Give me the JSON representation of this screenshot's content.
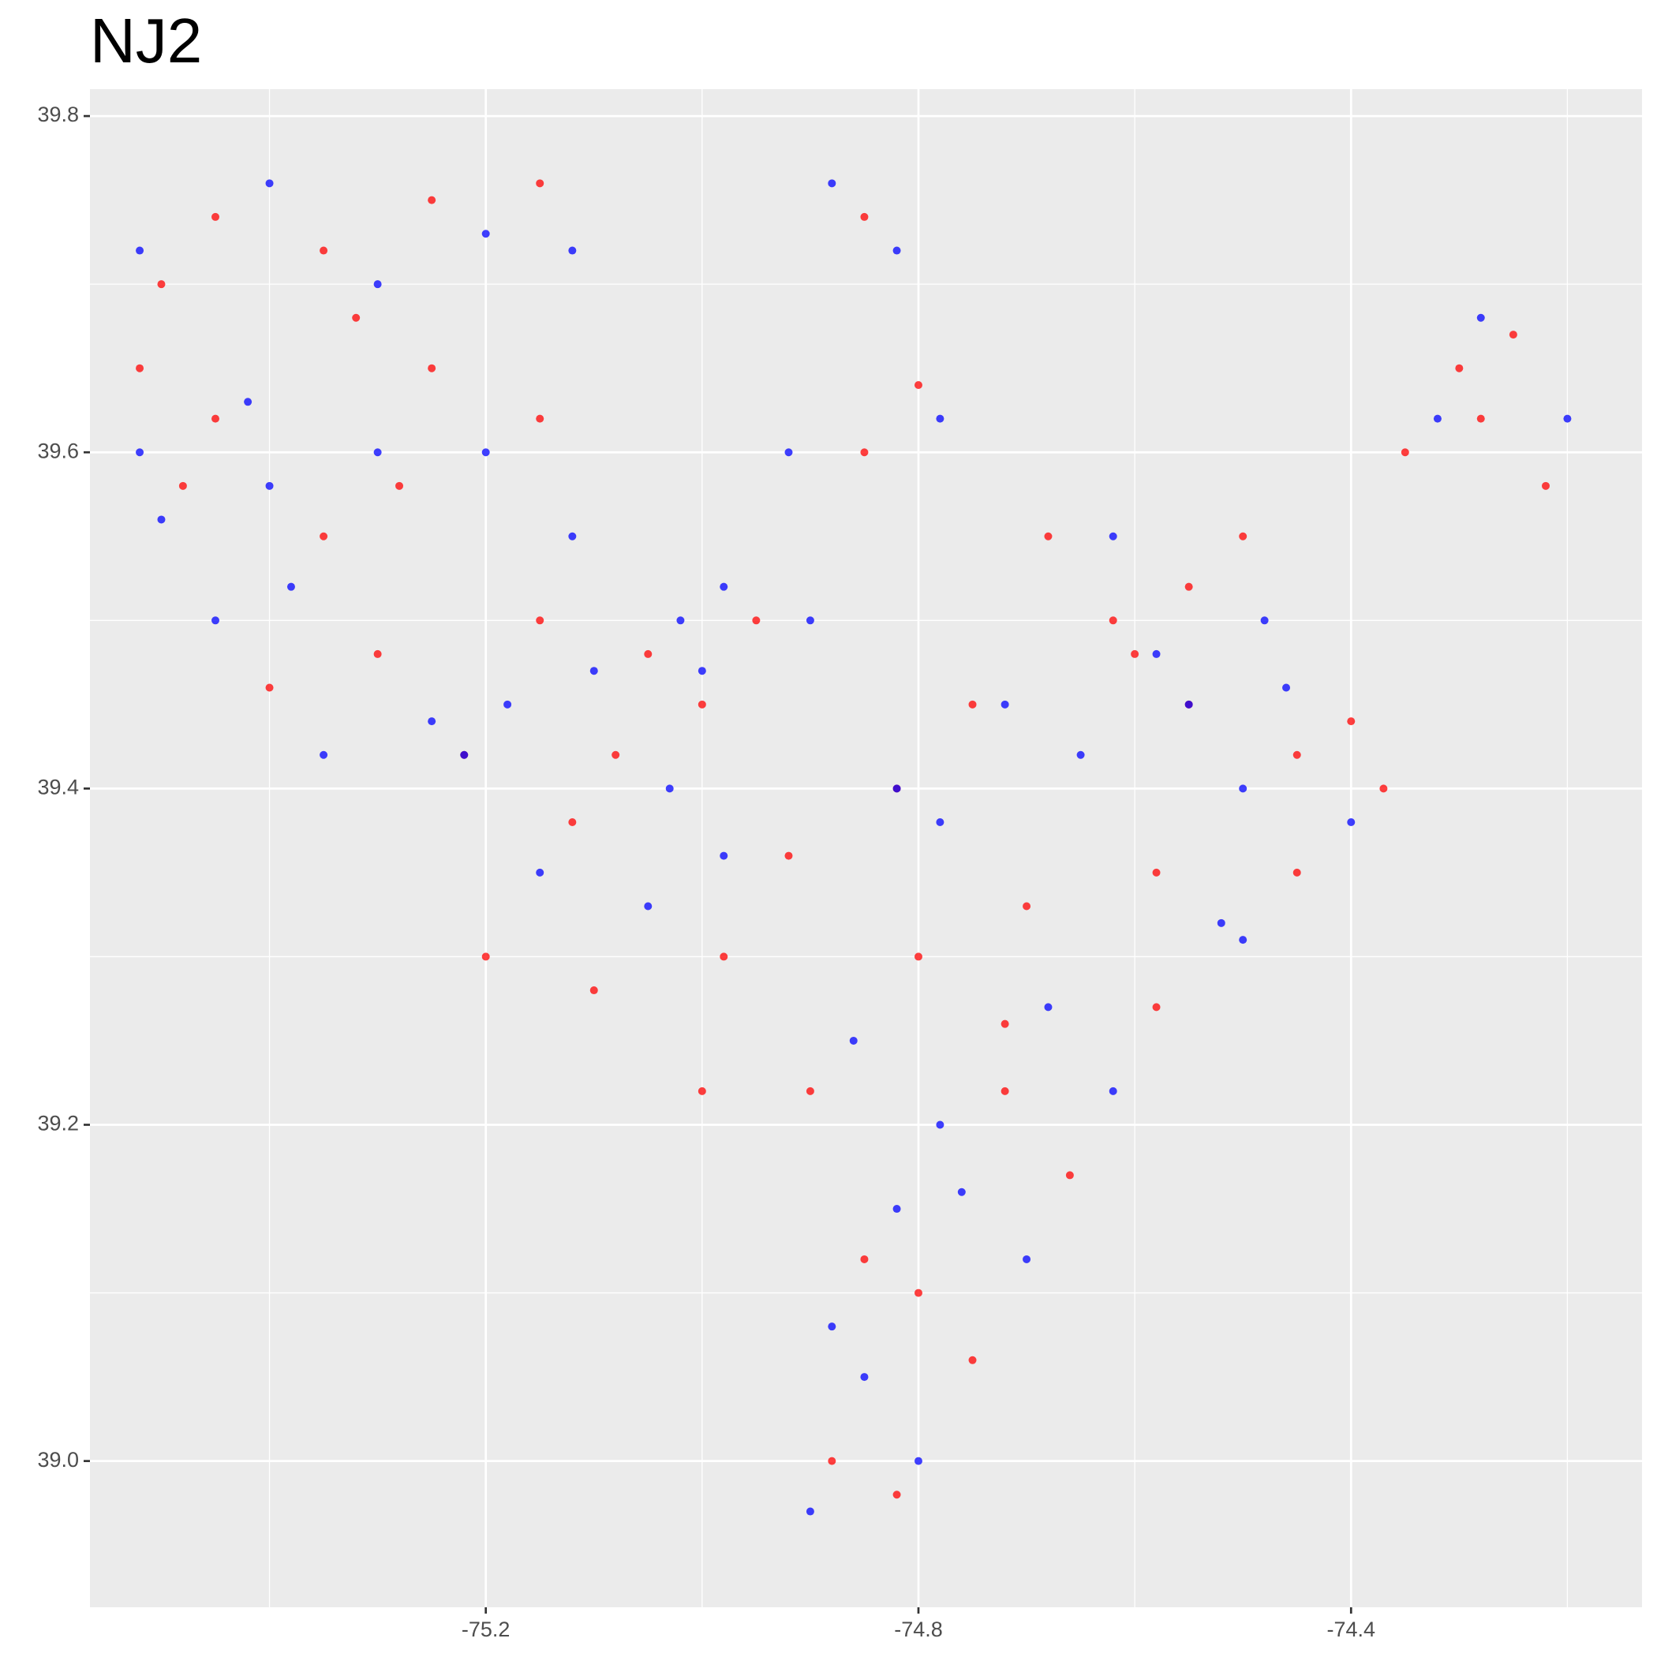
{
  "chart_data": {
    "type": "scatter",
    "title": "NJ2",
    "xlim": [
      -75.566,
      -74.131
    ],
    "ylim": [
      38.913,
      39.816
    ],
    "xticks": [
      -75.2,
      -74.8,
      -74.4
    ],
    "yticks": [
      {
        "value": 39,
        "label": "39.0"
      },
      39.2,
      39.4,
      39.6,
      39.8
    ],
    "xminor": [
      -75.4,
      -75.0,
      -74.6,
      -74.2
    ],
    "yminor": [
      38.9,
      39.1,
      39.3,
      39.5,
      39.7
    ],
    "grid": true,
    "series": [
      {
        "color": "#ff0000",
        "x": [
          -75.5,
          -75.45,
          -75.35,
          -75.25,
          -75.15,
          -75.52,
          -75.45,
          -75.35,
          -75.25,
          -75.15,
          -75.4,
          -75.3,
          -75.22,
          -75.15,
          -75.05,
          -75.0,
          -75.08,
          -75.2,
          -75.1,
          -74.98,
          -75.0,
          -74.8,
          -74.85,
          -74.85,
          -74.82,
          -74.75,
          -74.55,
          -74.58,
          -74.6,
          -74.55,
          -74.45,
          -74.35,
          -74.3,
          -74.25,
          -74.22,
          -74.45,
          -74.37,
          -74.58,
          -74.66,
          -74.75,
          -74.72,
          -74.8,
          -74.88,
          -74.82,
          -74.85,
          -74.8,
          -74.72,
          -74.9,
          -74.95,
          -75.28,
          -75.32,
          -74.68,
          -74.62,
          -74.5,
          -75.12,
          -75.48,
          -74.92,
          -74.7,
          -74.4,
          -74.28
        ],
        "y": [
          39.7,
          39.74,
          39.72,
          39.75,
          39.76,
          39.65,
          39.62,
          39.55,
          39.65,
          39.62,
          39.46,
          39.48,
          39.42,
          39.5,
          39.48,
          39.45,
          39.42,
          39.3,
          39.28,
          39.3,
          39.22,
          39.64,
          39.6,
          39.74,
          39.4,
          39.45,
          39.45,
          39.35,
          39.48,
          39.52,
          39.42,
          39.6,
          39.65,
          39.67,
          39.58,
          39.35,
          39.4,
          39.27,
          39.17,
          39.06,
          39.22,
          39.1,
          39.0,
          38.98,
          39.12,
          39.3,
          39.26,
          39.22,
          39.5,
          39.58,
          39.68,
          39.55,
          39.5,
          39.55,
          39.38,
          39.58,
          39.36,
          39.33,
          39.44,
          39.62
        ]
      },
      {
        "color": "#0000ff",
        "x": [
          -75.52,
          -75.4,
          -75.3,
          -75.2,
          -75.12,
          -75.52,
          -75.5,
          -75.4,
          -75.3,
          -75.2,
          -75.45,
          -75.35,
          -75.25,
          -75.18,
          -75.12,
          -75.02,
          -74.98,
          -75.03,
          -75.15,
          -75.05,
          -74.88,
          -74.78,
          -74.82,
          -74.9,
          -74.82,
          -74.78,
          -74.5,
          -74.52,
          -74.48,
          -74.62,
          -74.55,
          -74.32,
          -74.28,
          -74.2,
          -74.4,
          -74.5,
          -74.62,
          -74.7,
          -74.68,
          -74.76,
          -74.85,
          -74.9,
          -74.8,
          -74.88,
          -74.82,
          -74.78,
          -75.22,
          -75.0,
          -74.86,
          -74.58,
          -74.92,
          -75.38,
          -74.46,
          -74.65,
          -74.72,
          -75.1,
          -75.42,
          -74.98
        ],
        "y": [
          39.72,
          39.76,
          39.7,
          39.73,
          39.72,
          39.6,
          39.56,
          39.58,
          39.6,
          39.6,
          39.5,
          39.42,
          39.44,
          39.45,
          39.55,
          39.5,
          39.52,
          39.4,
          39.35,
          39.33,
          39.76,
          39.62,
          39.72,
          39.5,
          39.4,
          39.38,
          39.4,
          39.32,
          39.5,
          39.55,
          39.45,
          39.62,
          39.68,
          39.62,
          39.38,
          39.31,
          39.22,
          39.12,
          39.27,
          39.16,
          39.05,
          38.97,
          39.0,
          39.08,
          39.15,
          39.2,
          39.42,
          39.47,
          39.25,
          39.48,
          39.6,
          39.52,
          39.46,
          39.42,
          39.45,
          39.47,
          39.63,
          39.36
        ]
      }
    ]
  }
}
